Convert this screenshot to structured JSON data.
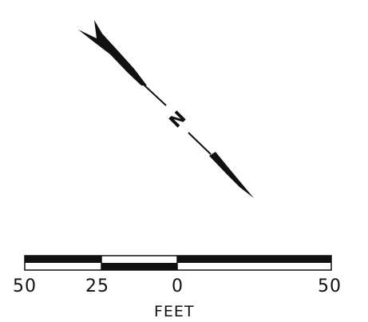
{
  "north_arrow": {
    "label": "N",
    "icon": "north-arrow-icon",
    "color": "#111111"
  },
  "scale_bar": {
    "tick_labels": [
      "50",
      "25",
      "0",
      "50"
    ],
    "unit_label": "FEET",
    "fill_color": "#111111",
    "empty_color": "#ffffff"
  }
}
